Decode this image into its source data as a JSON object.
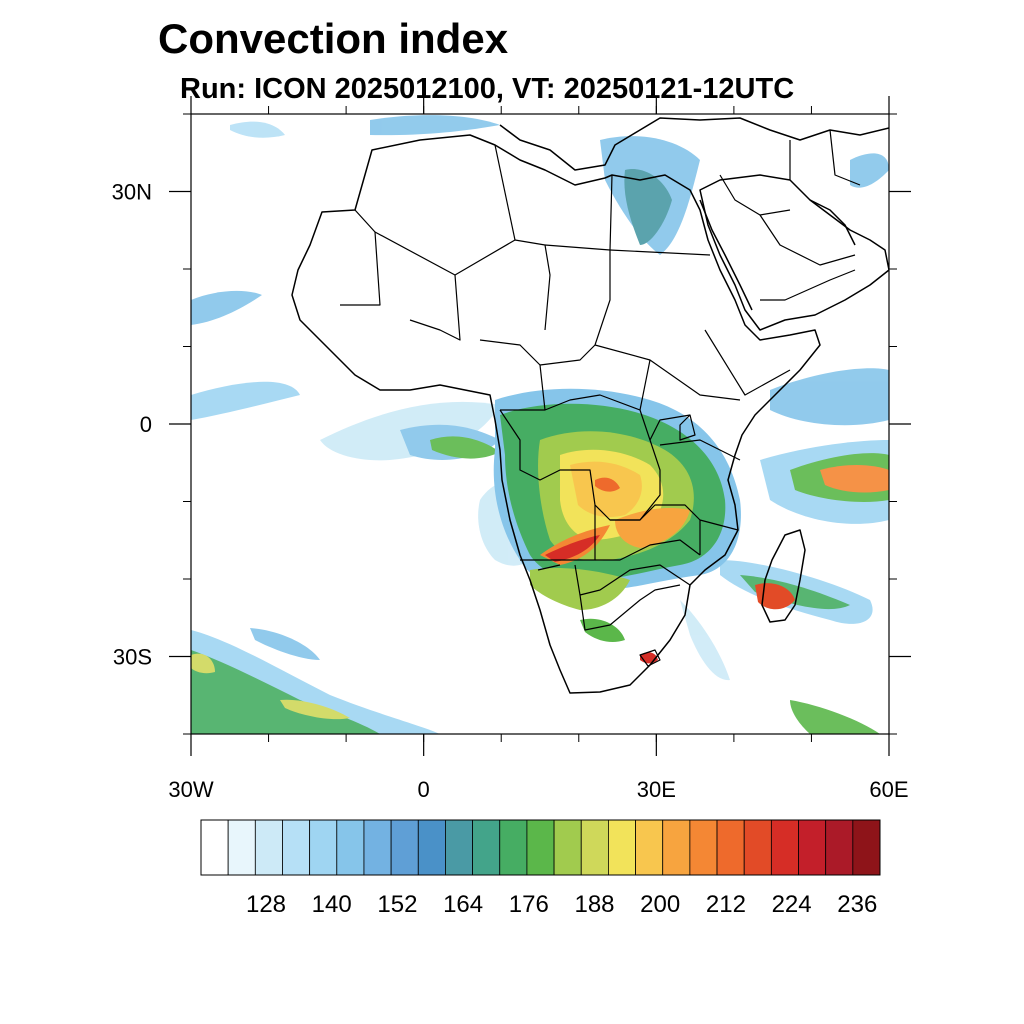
{
  "header": {
    "title": "Convection index",
    "subtitle": "Run: ICON 2025012100,  VT: 20250121-12UTC"
  },
  "map": {
    "lon_range": [
      -30,
      60
    ],
    "lat_range": [
      -40,
      40
    ],
    "x_ticks": [
      {
        "lon": -30,
        "label": "30W"
      },
      {
        "lon": 0,
        "label": "0"
      },
      {
        "lon": 30,
        "label": "30E"
      },
      {
        "lon": 60,
        "label": "60E"
      }
    ],
    "y_ticks": [
      {
        "lat": 30,
        "label": "30N"
      },
      {
        "lat": 0,
        "label": "0"
      },
      {
        "lat": -30,
        "label": "30S"
      }
    ],
    "minor_step_deg": 10
  },
  "colorbar": {
    "colors": [
      "#ffffff",
      "#e8f6fc",
      "#cdeaf7",
      "#b6e0f6",
      "#9fd5f2",
      "#86c5ea",
      "#73b2e2",
      "#5f9fd6",
      "#4a91c8",
      "#4a9aa5",
      "#43a48a",
      "#46ad63",
      "#5bb74a",
      "#a1cb4e",
      "#cfd85a",
      "#f2e35a",
      "#f8c64e",
      "#f7a43f",
      "#f48734",
      "#ee6a2c",
      "#e24b27",
      "#d62d26",
      "#c31f2a",
      "#ab1a28",
      "#8e1419"
    ],
    "labels": [
      "128",
      "140",
      "152",
      "164",
      "176",
      "188",
      "200",
      "212",
      "224",
      "236"
    ]
  },
  "features": [
    {
      "name": "africa",
      "fill": "#ffffff",
      "stroke": "#000000"
    },
    {
      "name": "arabian-peninsula",
      "fill": "#ffffff",
      "stroke": "#000000"
    },
    {
      "name": "madagascar",
      "fill": "#ffffff",
      "stroke": "#000000"
    }
  ],
  "convection": [
    {
      "name": "central-africa-core",
      "color": "#5bb74a"
    },
    {
      "name": "angola-zambia-max",
      "color": "#d62d26"
    },
    {
      "name": "indian-ocean-band",
      "color": "#f48734"
    },
    {
      "name": "south-atlantic-band",
      "color": "#cfd85a"
    },
    {
      "name": "madagascar-cell",
      "color": "#e24b27"
    }
  ]
}
